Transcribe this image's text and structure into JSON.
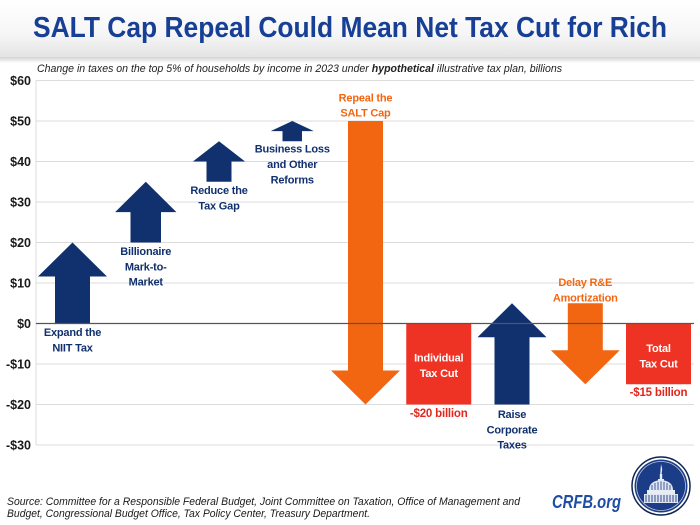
{
  "header": {
    "title": "SALT Cap Repeal Could Mean Net Tax Cut for Rich"
  },
  "chart_data": {
    "type": "bar",
    "variant": "waterfall",
    "title": "SALT Cap Repeal Could Mean Net Tax Cut for Rich",
    "subtitle": "Change in taxes on the top 5% of households by income in 2023 under hypothetical illustrative tax plan, billions",
    "subtitle_parts": [
      "Change in taxes on the top 5% of households by income in 2023 under ",
      "hypothetical",
      " illustrative tax plan, billions"
    ],
    "xlabel": "",
    "ylabel": "",
    "ylim": [
      -30,
      60
    ],
    "yticks": [
      60,
      50,
      40,
      30,
      20,
      10,
      0,
      -10,
      -20,
      -30
    ],
    "ytick_labels": [
      "$60",
      "$50",
      "$40",
      "$30",
      "$20",
      "$10",
      "$0",
      "-$10",
      "-$20",
      "-$30"
    ],
    "grid": true,
    "legend": "none",
    "categories": [
      "Expand the NIIT Tax",
      "Billionaire Mark-to-Market",
      "Reduce the Tax Gap",
      "Business Loss and Other Reforms",
      "Repeal the SALT Cap",
      "Individual Tax Cut",
      "Raise Corporate Taxes",
      "Delay R&E Amortization",
      "Total Tax Cut"
    ],
    "values": [
      20,
      15,
      10,
      5,
      -70,
      -20,
      25,
      -20,
      -15
    ],
    "items": [
      {
        "label_lines": [
          "Expand the",
          "NIIT Tax"
        ],
        "kind": "increase",
        "start": 0,
        "end": 20,
        "change": 20
      },
      {
        "label_lines": [
          "Billionaire",
          "Mark-to-",
          "Market"
        ],
        "kind": "increase",
        "start": 20,
        "end": 35,
        "change": 15
      },
      {
        "label_lines": [
          "Reduce the",
          "Tax Gap"
        ],
        "kind": "increase",
        "start": 35,
        "end": 45,
        "change": 10
      },
      {
        "label_lines": [
          "Business Loss",
          "and Other",
          "Reforms"
        ],
        "kind": "increase",
        "start": 45,
        "end": 50,
        "change": 5
      },
      {
        "label_lines": [
          "Repeal the",
          "SALT Cap"
        ],
        "kind": "decrease",
        "start": 50,
        "end": -20,
        "change": -70
      },
      {
        "label_lines": [
          "Individual",
          "Tax Cut"
        ],
        "kind": "subtotal",
        "start": 0,
        "end": -20,
        "change": -20,
        "value_label": "-$20 billion"
      },
      {
        "label_lines": [
          "Raise",
          "Corporate",
          "Taxes"
        ],
        "kind": "increase",
        "start": -20,
        "end": 5,
        "change": 25
      },
      {
        "label_lines": [
          "Delay R&E",
          "Amortization"
        ],
        "kind": "decrease",
        "start": 5,
        "end": -15,
        "change": -20
      },
      {
        "label_lines": [
          "Total",
          "Tax Cut"
        ],
        "kind": "total",
        "start": 0,
        "end": -15,
        "change": -15,
        "value_label": "-$15 billion"
      }
    ]
  },
  "colors": {
    "title": "#173f95",
    "increase": "#10306e",
    "decrease": "#f26611",
    "total": "#ee3224",
    "total_label": "#e3261c",
    "brand": "#1f4ea3"
  },
  "footer": {
    "source_lines": [
      "Source: Committee for a Responsible Federal Budget, Joint Committee on Taxation, Office of Management and",
      "Budget, Congressional Budget Office, Tax Policy Center, Treasury Department."
    ],
    "brand": "CRFB.org",
    "logo_icon": "capitol-dome-seal-icon"
  }
}
